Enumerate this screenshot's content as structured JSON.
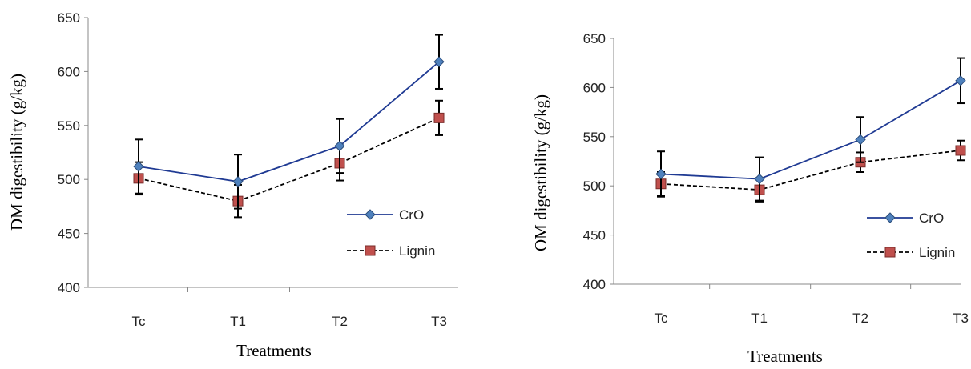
{
  "chart_data": [
    {
      "type": "line",
      "categories": [
        "Tc",
        "T1",
        "T2",
        "T3"
      ],
      "xlabel": "Treatments",
      "ylabel": "DM  digestibility (g/kg)",
      "ylim": [
        400,
        650
      ],
      "yticks": [
        400,
        450,
        500,
        550,
        600,
        650
      ],
      "grid": false,
      "legend_position": "right",
      "series": [
        {
          "name": "CrO",
          "values": [
            512,
            498,
            531,
            609
          ],
          "errors": [
            25,
            25,
            25,
            25
          ],
          "marker": "diamond",
          "line": "solid",
          "color": "#1F3A93",
          "marker_color": "#4F81BD"
        },
        {
          "name": "Lignin",
          "values": [
            501,
            480,
            515,
            557
          ],
          "errors": [
            15,
            15,
            16,
            16
          ],
          "marker": "square",
          "line": "dashed",
          "color": "#000000",
          "marker_color": "#C0504D"
        }
      ]
    },
    {
      "type": "line",
      "categories": [
        "Tc",
        "T1",
        "T2",
        "T3"
      ],
      "xlabel": "Treatments",
      "ylabel": "OM  digestibility (g/kg)",
      "ylim": [
        400,
        650
      ],
      "yticks": [
        400,
        450,
        500,
        550,
        600,
        650
      ],
      "grid": false,
      "legend_position": "right",
      "series": [
        {
          "name": "CrO",
          "values": [
            512,
            507,
            547,
            607
          ],
          "errors": [
            23,
            22,
            23,
            23
          ],
          "marker": "diamond",
          "line": "solid",
          "color": "#1F3A93",
          "marker_color": "#4F81BD"
        },
        {
          "name": "Lignin",
          "values": [
            502,
            496,
            524,
            536
          ],
          "errors": [
            12,
            12,
            10,
            10
          ],
          "marker": "square",
          "line": "dashed",
          "color": "#000000",
          "marker_color": "#C0504D"
        }
      ]
    }
  ]
}
